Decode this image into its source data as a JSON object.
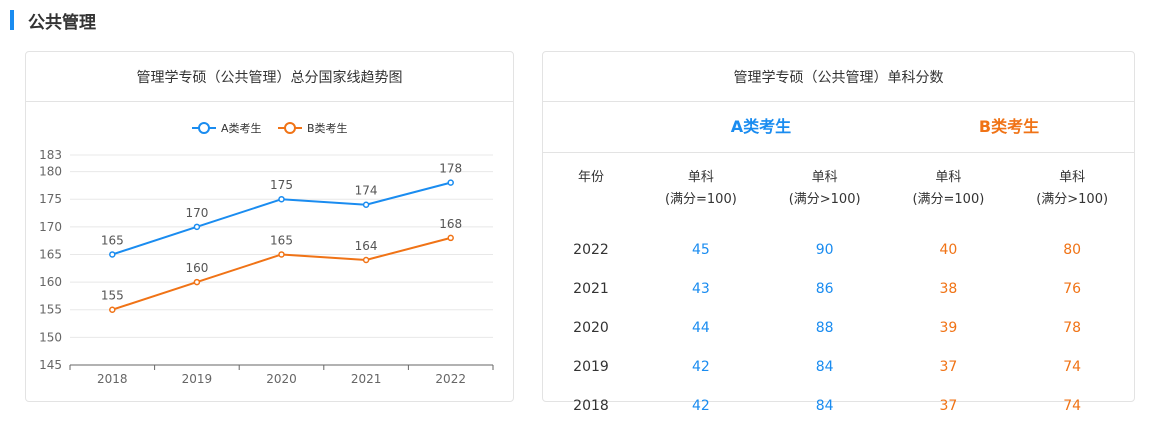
{
  "section": {
    "title": "公共管理"
  },
  "left_card": {
    "title": "管理学专硕（公共管理）总分国家线趋势图"
  },
  "right_card": {
    "title": "管理学专硕（公共管理）单科分数",
    "group_a": "A类考生",
    "group_b": "B类考生",
    "headers": {
      "year": "年份",
      "a1_line1": "单科",
      "a1_line2": "(满分=100)",
      "a2_line1": "单科",
      "a2_line2": "(满分>100)",
      "b1_line1": "单科",
      "b1_line2": "(满分=100)",
      "b2_line1": "单科",
      "b2_line2": "(满分>100)"
    },
    "rows": [
      {
        "year": "2022",
        "a1": "45",
        "a2": "90",
        "b1": "40",
        "b2": "80"
      },
      {
        "year": "2021",
        "a1": "43",
        "a2": "86",
        "b1": "38",
        "b2": "76"
      },
      {
        "year": "2020",
        "a1": "44",
        "a2": "88",
        "b1": "39",
        "b2": "78"
      },
      {
        "year": "2019",
        "a1": "42",
        "a2": "84",
        "b1": "37",
        "b2": "74"
      },
      {
        "year": "2018",
        "a1": "42",
        "a2": "84",
        "b1": "37",
        "b2": "74"
      }
    ]
  },
  "chart_data": {
    "type": "line",
    "title": "管理学专硕（公共管理）总分国家线趋势图",
    "categories": [
      "2018",
      "2019",
      "2020",
      "2021",
      "2022"
    ],
    "series": [
      {
        "name": "A类考生",
        "color": "#1a8cf0",
        "values": [
          165,
          170,
          175,
          174,
          178
        ]
      },
      {
        "name": "B类考生",
        "color": "#f07316",
        "values": [
          155,
          160,
          165,
          164,
          168
        ]
      }
    ],
    "yticks": [
      "145",
      "150",
      "155",
      "160",
      "165",
      "170",
      "175",
      "180",
      "183"
    ],
    "ylim": [
      145,
      183
    ],
    "legend_position": "top-center",
    "grid": true
  }
}
